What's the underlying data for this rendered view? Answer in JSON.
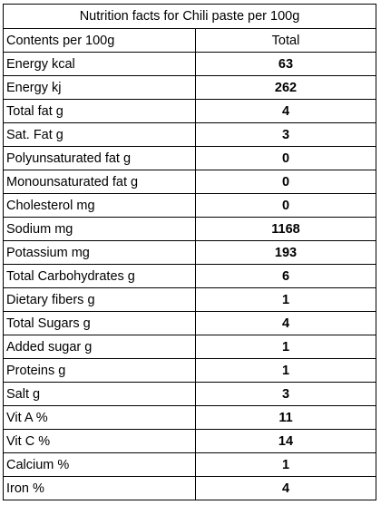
{
  "table": {
    "title": "Nutrition facts for Chili paste per 100g",
    "header": [
      "Contents per 100g",
      "Total"
    ],
    "rows": [
      [
        "Energy kcal",
        63
      ],
      [
        "Energy kj",
        262
      ],
      [
        "Total fat g",
        4
      ],
      [
        "Sat. Fat g",
        3
      ],
      [
        "Polyunsaturated fat g",
        0
      ],
      [
        "Monounsaturated fat g",
        0
      ],
      [
        "Cholesterol mg",
        0
      ],
      [
        "Sodium mg",
        1168
      ],
      [
        "Potassium mg",
        193
      ],
      [
        "Total Carbohydrates g",
        6
      ],
      [
        "Dietary fibers g",
        1
      ],
      [
        "Total Sugars g",
        4
      ],
      [
        "Added sugar g",
        1
      ],
      [
        "Proteins g",
        1
      ],
      [
        "Salt g",
        3
      ],
      [
        "Vit A %",
        11
      ],
      [
        "Vit C %",
        14
      ],
      [
        "Calcium %",
        1
      ],
      [
        "Iron %",
        4
      ]
    ]
  }
}
